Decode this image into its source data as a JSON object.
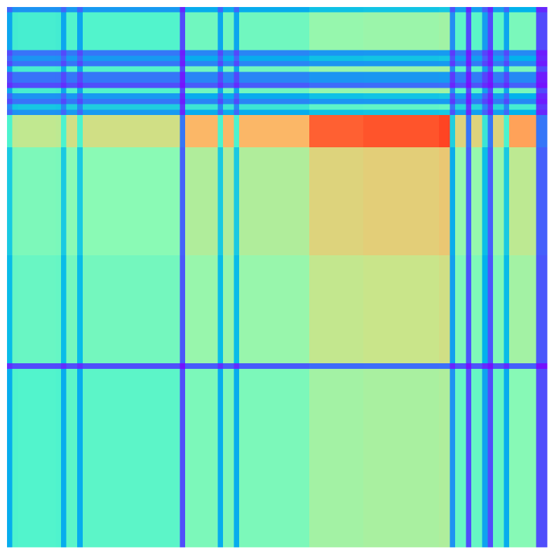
{
  "chart_data": {
    "type": "heatmap",
    "colormap": "rainbow",
    "colormap_stops": [
      "#7f00ff",
      "#3d6dfa",
      "#00b5eb",
      "#4df3ce",
      "#8cfab4",
      "#c9e58a",
      "#ffb464",
      "#ff5a2e",
      "#ff0000"
    ],
    "value_range": [
      0,
      1
    ],
    "rows": 100,
    "cols": 100,
    "xlabel": "",
    "ylabel": "",
    "title": "",
    "grid": false,
    "colorbar": false,
    "axes_visible": false,
    "column_factors": [
      0.14,
      0.36,
      0.37,
      0.37,
      0.37,
      0.37,
      0.37,
      0.37,
      0.37,
      0.36,
      0.14,
      0.41,
      0.41,
      0.14,
      0.41,
      0.41,
      0.41,
      0.41,
      0.41,
      0.41,
      0.41,
      0.41,
      0.41,
      0.41,
      0.41,
      0.41,
      0.41,
      0.41,
      0.41,
      0.41,
      0.41,
      0.41,
      0.02,
      0.55,
      0.55,
      0.55,
      0.55,
      0.55,
      0.55,
      0.14,
      0.55,
      0.55,
      0.14,
      0.55,
      0.55,
      0.55,
      0.55,
      0.55,
      0.55,
      0.55,
      0.55,
      0.55,
      0.55,
      0.55,
      0.55,
      0.55,
      0.75,
      0.75,
      0.75,
      0.75,
      0.75,
      0.75,
      0.75,
      0.75,
      0.75,
      0.75,
      0.78,
      0.78,
      0.78,
      0.78,
      0.78,
      0.78,
      0.78,
      0.78,
      0.78,
      0.78,
      0.78,
      0.78,
      0.78,
      0.78,
      0.82,
      0.82,
      0.09,
      0.45,
      0.45,
      0.02,
      0.45,
      0.45,
      0.12,
      0.02,
      0.45,
      0.45,
      0.14,
      0.6,
      0.6,
      0.6,
      0.6,
      0.6,
      0.02,
      0.02
    ],
    "row_factors": [
      0.1,
      0.36,
      0.36,
      0.36,
      0.36,
      0.36,
      0.36,
      0.36,
      0.05,
      0.1,
      0.05,
      0.36,
      0.05,
      0.05,
      0.02,
      0.36,
      0.1,
      0.05,
      0.22,
      0.1,
      1.0,
      1.0,
      1.0,
      1.0,
      1.0,
      1.0,
      0.6,
      0.6,
      0.6,
      0.6,
      0.6,
      0.6,
      0.6,
      0.6,
      0.6,
      0.6,
      0.6,
      0.6,
      0.6,
      0.6,
      0.6,
      0.6,
      0.6,
      0.6,
      0.6,
      0.6,
      0.5,
      0.5,
      0.5,
      0.5,
      0.5,
      0.5,
      0.5,
      0.5,
      0.5,
      0.5,
      0.5,
      0.5,
      0.5,
      0.5,
      0.5,
      0.5,
      0.5,
      0.5,
      0.5,
      0.5,
      0.02,
      0.4,
      0.4,
      0.4,
      0.4,
      0.4,
      0.4,
      0.4,
      0.4,
      0.4,
      0.4,
      0.4,
      0.4,
      0.4,
      0.4,
      0.4,
      0.4,
      0.4,
      0.4,
      0.4,
      0.4,
      0.4,
      0.4,
      0.4,
      0.4,
      0.4,
      0.4,
      0.4,
      0.4,
      0.4,
      0.4,
      0.4,
      0.4,
      0.4
    ]
  }
}
